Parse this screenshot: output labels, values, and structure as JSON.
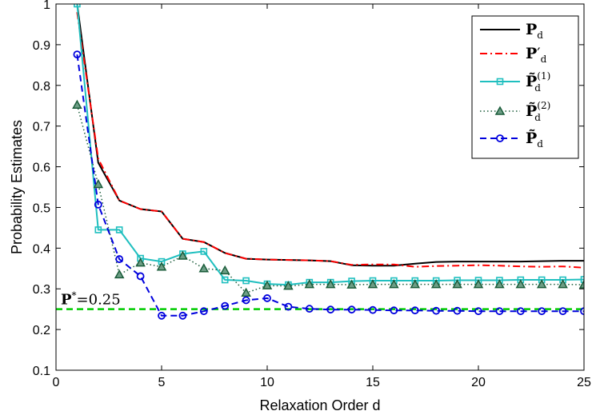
{
  "chart_data": {
    "type": "line",
    "xlabel": "Relaxation Order d",
    "ylabel": "Probability Estimates",
    "xlim": [
      0,
      25
    ],
    "ylim": [
      0.1,
      1
    ],
    "xticks": [
      0,
      5,
      10,
      15,
      20,
      25
    ],
    "yticks": [
      0.1,
      0.2,
      0.3,
      0.4,
      0.5,
      0.6,
      0.7,
      0.8,
      0.9,
      1
    ],
    "grid": false,
    "legend_position": "top-right",
    "reference_line": {
      "value": 0.25,
      "label_main": "P",
      "label_sup": "*",
      "label_rest": "=0.25",
      "color": "#00cc00"
    },
    "series": [
      {
        "name": "P",
        "sub": "d",
        "sup": "",
        "color": "#000000",
        "style": "solid",
        "marker": "none",
        "x": [
          1,
          2,
          3,
          4,
          5,
          6,
          7,
          8,
          9,
          10,
          11,
          12,
          13,
          14,
          15,
          16,
          17,
          18,
          19,
          20,
          21,
          22,
          23,
          24,
          25
        ],
        "values": [
          1.0,
          0.61,
          0.517,
          0.496,
          0.49,
          0.423,
          0.415,
          0.388,
          0.374,
          0.372,
          0.371,
          0.37,
          0.368,
          0.358,
          0.357,
          0.357,
          0.362,
          0.366,
          0.367,
          0.367,
          0.367,
          0.367,
          0.368,
          0.369,
          0.369
        ]
      },
      {
        "name": "P",
        "sub": "d",
        "sup": "′",
        "color": "#ff0000",
        "style": "dashdot",
        "marker": "none",
        "x": [
          1,
          2,
          3,
          4,
          5,
          6,
          7,
          8,
          9,
          10,
          11,
          12,
          13,
          14,
          15,
          16,
          17,
          18,
          19,
          20,
          21,
          22,
          23,
          24,
          25
        ],
        "values": [
          0.98,
          0.62,
          0.517,
          0.496,
          0.49,
          0.423,
          0.415,
          0.388,
          0.374,
          0.372,
          0.371,
          0.37,
          0.368,
          0.359,
          0.36,
          0.36,
          0.354,
          0.356,
          0.357,
          0.358,
          0.357,
          0.355,
          0.354,
          0.355,
          0.352
        ]
      },
      {
        "name": "P̃",
        "sub": "d",
        "sup": "(1)",
        "color": "#1fbfbf",
        "style": "solid",
        "marker": "square",
        "x": [
          1,
          2,
          3,
          4,
          5,
          6,
          7,
          8,
          9,
          10,
          11,
          12,
          13,
          14,
          15,
          16,
          17,
          18,
          19,
          20,
          21,
          22,
          23,
          24,
          25
        ],
        "values": [
          1.0,
          0.445,
          0.445,
          0.375,
          0.367,
          0.386,
          0.392,
          0.322,
          0.32,
          0.312,
          0.31,
          0.316,
          0.316,
          0.319,
          0.32,
          0.32,
          0.32,
          0.32,
          0.321,
          0.321,
          0.321,
          0.322,
          0.322,
          0.322,
          0.323
        ]
      },
      {
        "name": "P̃",
        "sub": "d",
        "sup": "(2)",
        "color": "#1a5c3a",
        "style": "dotted",
        "marker": "triangle",
        "x": [
          1,
          2,
          3,
          4,
          5,
          6,
          7,
          8,
          9,
          10,
          11,
          12,
          13,
          14,
          15,
          16,
          17,
          18,
          19,
          20,
          21,
          22,
          23,
          24,
          25
        ],
        "values": [
          0.752,
          0.557,
          0.335,
          0.364,
          0.354,
          0.381,
          0.35,
          0.345,
          0.29,
          0.308,
          0.307,
          0.311,
          0.311,
          0.31,
          0.311,
          0.311,
          0.311,
          0.311,
          0.311,
          0.311,
          0.311,
          0.311,
          0.311,
          0.311,
          0.31
        ]
      },
      {
        "name": "P̃",
        "sub": "d",
        "sup": "",
        "color": "#0000dd",
        "style": "dashed",
        "marker": "circle",
        "x": [
          1,
          2,
          3,
          4,
          5,
          6,
          7,
          8,
          9,
          10,
          11,
          12,
          13,
          14,
          15,
          16,
          17,
          18,
          19,
          20,
          21,
          22,
          23,
          24,
          25
        ],
        "values": [
          0.876,
          0.507,
          0.373,
          0.331,
          0.234,
          0.234,
          0.245,
          0.258,
          0.272,
          0.277,
          0.256,
          0.251,
          0.249,
          0.249,
          0.248,
          0.247,
          0.247,
          0.246,
          0.246,
          0.245,
          0.245,
          0.245,
          0.245,
          0.245,
          0.245
        ]
      }
    ]
  }
}
